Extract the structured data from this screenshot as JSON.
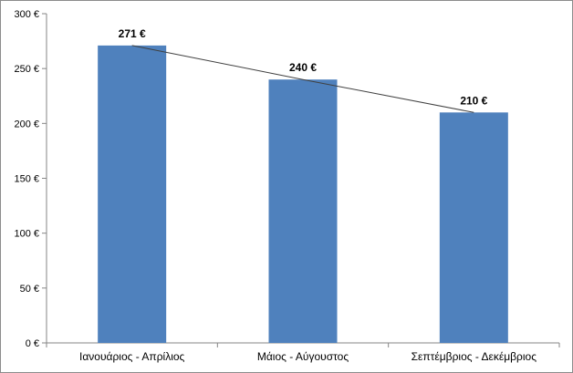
{
  "chart_data": {
    "type": "bar",
    "categories": [
      "Ιανουάριος  - Απρίλιος",
      "Μάιος - Αύγουστος",
      "Σεπτέμβριος - Δεκέμβριος"
    ],
    "values": [
      271,
      240,
      210
    ],
    "data_labels": [
      "271 €",
      "240 €",
      "210 €"
    ],
    "ylim": [
      0,
      300
    ],
    "y_ticks": [
      0,
      50,
      100,
      150,
      200,
      250,
      300
    ],
    "y_tick_labels": [
      "0 €",
      "50 €",
      "100 €",
      "150 €",
      "200 €",
      "250 €",
      "300 €"
    ],
    "trendline": true,
    "grid": false,
    "legend": "none",
    "title": "",
    "xlabel": "",
    "ylabel": "",
    "colors": {
      "bar": "#4f81bd",
      "trendline": "#404040",
      "axis": "#868686"
    }
  }
}
